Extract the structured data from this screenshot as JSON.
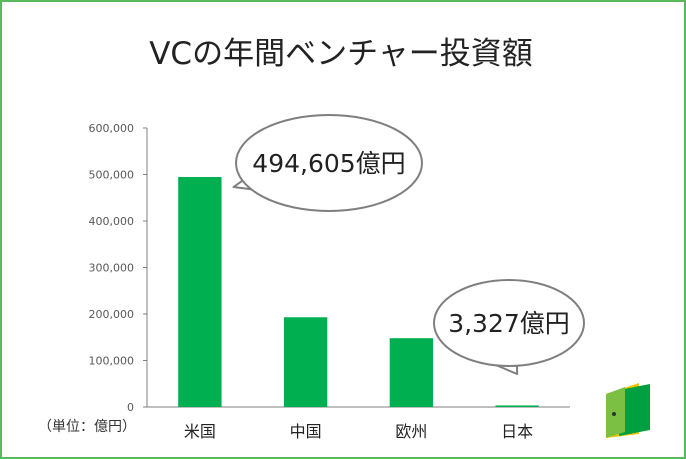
{
  "title": "VCの年間ベンチャー投資額",
  "unit_label": "（単位：億円）",
  "colors": {
    "bar": "#00b050",
    "frame": "#5cb85c",
    "axis": "#7f7f7f"
  },
  "logo": {
    "name": "door-icon"
  },
  "chart_data": {
    "type": "bar",
    "title": "VCの年間ベンチャー投資額",
    "categories": [
      "米国",
      "中国",
      "欧州",
      "日本"
    ],
    "values": [
      494605,
      193000,
      148000,
      3327
    ],
    "yticks": [
      0,
      100000,
      200000,
      300000,
      400000,
      500000,
      600000
    ],
    "ytick_labels": [
      "0",
      "100,000",
      "200,000",
      "300,000",
      "400,000",
      "500,000",
      "600,000"
    ],
    "ylim": [
      0,
      600000
    ],
    "grid": false,
    "legend": "none",
    "annotations": [
      {
        "category": "米国",
        "text": "494,605億円"
      },
      {
        "category": "日本",
        "text": "3,327億円"
      }
    ]
  }
}
